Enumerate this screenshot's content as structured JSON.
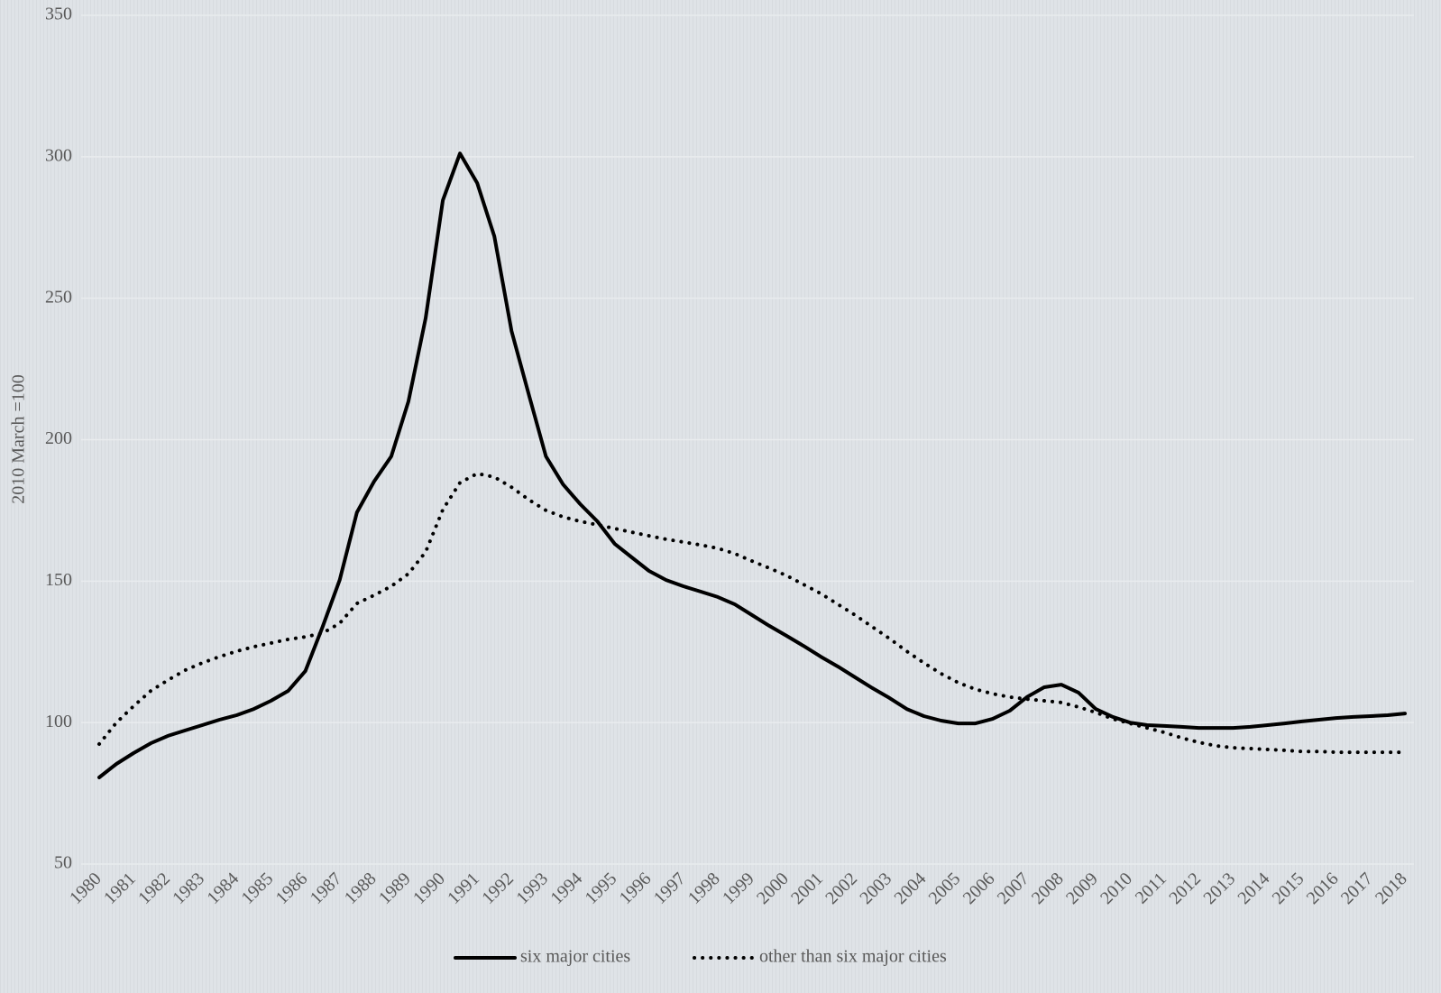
{
  "chart_data": {
    "type": "line",
    "y_label": "2010 March =100",
    "categories": [
      "1980",
      null,
      "1981",
      null,
      "1982",
      null,
      "1983",
      null,
      "1984",
      null,
      "1985",
      null,
      "1986",
      null,
      "1987",
      null,
      "1988",
      null,
      "1989",
      null,
      "1990",
      null,
      "1991",
      null,
      "1992",
      null,
      "1993",
      null,
      "1994",
      null,
      "1995",
      null,
      "1996",
      null,
      "1997",
      null,
      "1998",
      null,
      "1999",
      null,
      "2000",
      null,
      "2001",
      null,
      "2002",
      null,
      "2003",
      null,
      "2004",
      null,
      "2005",
      null,
      "2006",
      null,
      "2007",
      null,
      "2008",
      null,
      "2009",
      null,
      "2010",
      null,
      "2011",
      null,
      "2012",
      null,
      "2013",
      null,
      "2014",
      null,
      "2015",
      null,
      "2016",
      null,
      "2017",
      null,
      "2018"
    ],
    "series": [
      {
        "name": "six major cities",
        "color": "#000000",
        "dash": "solid",
        "values": [
          80.6,
          85.4,
          89.2,
          92.7,
          95.3,
          97.2,
          99.1,
          101,
          102.6,
          104.8,
          107.7,
          111.2,
          118.2,
          133.8,
          150.4,
          174.3,
          185.2,
          194.1,
          213.5,
          242.9,
          284.6,
          301.2,
          290.7,
          271.9,
          238.4,
          216.1,
          194.1,
          184.2,
          177.2,
          171.1,
          163.2,
          158.4,
          153.6,
          150.4,
          148.2,
          146.3,
          144.4,
          141.8,
          138,
          134.2,
          130.7,
          127.1,
          123.3,
          119.8,
          116,
          112.2,
          108.7,
          104.8,
          102.3,
          100.7,
          99.7,
          99.7,
          101.3,
          104.2,
          109,
          112.5,
          113.4,
          110.6,
          104.8,
          102,
          100,
          99.1,
          98.8,
          98.5,
          98.1,
          98.1,
          98.1,
          98.5,
          99.1,
          99.7,
          100.4,
          101,
          101.6,
          102,
          102.3,
          102.6,
          103.2
        ]
      },
      {
        "name": "other than six major cities",
        "color": "#000000",
        "dash": "dotted",
        "values": [
          92.4,
          100,
          105.8,
          111.2,
          115,
          118.5,
          121.1,
          123.3,
          125.2,
          126.8,
          128.1,
          129.4,
          130.3,
          131.6,
          135.1,
          142.1,
          145,
          148.2,
          152.6,
          160.3,
          175.3,
          184.8,
          188,
          186.8,
          183.2,
          178.8,
          175,
          172.7,
          171.1,
          169.9,
          168.6,
          167.3,
          166,
          164.8,
          163.8,
          162.8,
          161.6,
          159.7,
          157.1,
          154.6,
          152,
          148.8,
          145.6,
          141.8,
          138,
          133.8,
          129.7,
          125.2,
          121.1,
          117.3,
          114.1,
          111.8,
          110.2,
          109,
          108.3,
          107.7,
          107.1,
          105.5,
          103.6,
          101.3,
          99.7,
          98.1,
          96.5,
          94.6,
          93,
          91.8,
          91.1,
          90.8,
          90.5,
          90.2,
          89.8,
          89.8,
          89.5,
          89.5,
          89.5,
          89.5,
          89.5
        ]
      }
    ],
    "ylim": [
      50,
      350
    ],
    "yticks": [
      50,
      100,
      150,
      200,
      250,
      300,
      350
    ],
    "grid": true,
    "legend": "bottom"
  }
}
